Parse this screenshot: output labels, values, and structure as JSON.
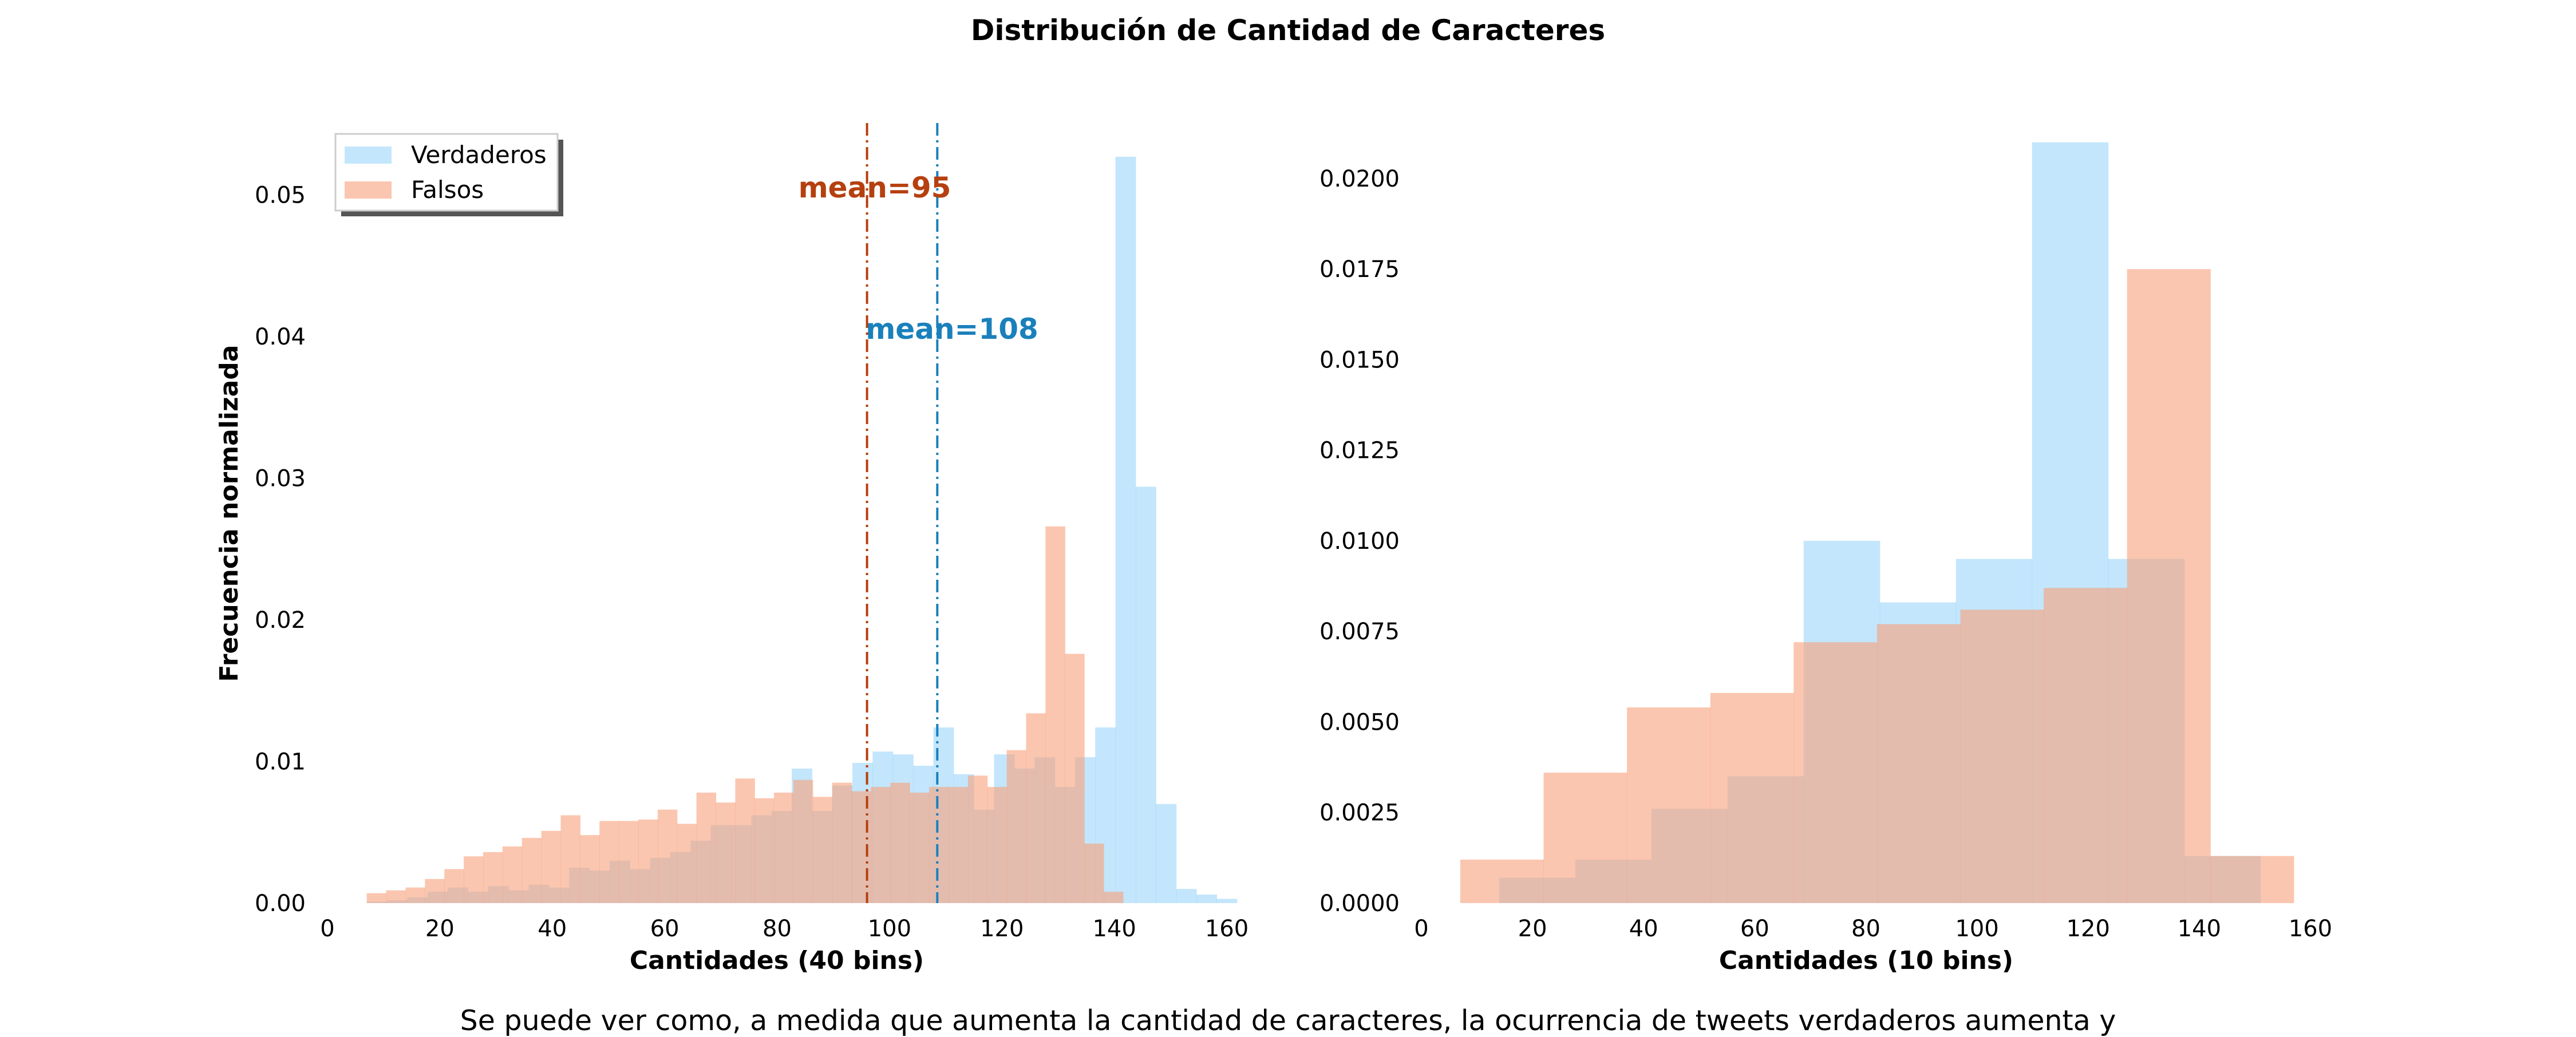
{
  "figure": {
    "title": "Distribución de Cantidad de Caracteres",
    "caption": "Se puede ver como, a medida que aumenta la cantidad de caracteres, la ocurrencia de tweets verdaderos aumenta y",
    "colors": {
      "verdaderos": "#87cefa",
      "falsos": "#f9a07a",
      "mean_falsos": "#b5400f",
      "mean_verdaderos": "#1a80bb"
    }
  },
  "chart_data": [
    {
      "type": "bar",
      "title": "",
      "xlabel": "Cantidades (40 bins)",
      "ylabel": "Frecuencia normalizada",
      "xlim": [
        0,
        160
      ],
      "ylim": [
        0,
        0.055
      ],
      "xticks": [
        "0",
        "20",
        "40",
        "60",
        "80",
        "100",
        "120",
        "140",
        "160"
      ],
      "yticks": [
        "0.00",
        "0.01",
        "0.02",
        "0.03",
        "0.04",
        "0.05"
      ],
      "grid": false,
      "legend": {
        "position": "top-left",
        "entries": [
          "Verdaderos",
          "Falsos"
        ]
      },
      "annotations": [
        {
          "label": "mean=95",
          "x": 96,
          "series": "Falsos"
        },
        {
          "label": "mean=108",
          "x": 108.5,
          "series": "Verdaderos"
        }
      ],
      "series": [
        {
          "name": "Verdaderos",
          "bin_start": 7,
          "bin_width": 3.6,
          "values": [
            0.0001,
            0.0002,
            0.0004,
            0.0008,
            0.0011,
            0.0008,
            0.0012,
            0.0009,
            0.0013,
            0.0011,
            0.0025,
            0.0023,
            0.003,
            0.0024,
            0.0032,
            0.0036,
            0.0044,
            0.0055,
            0.0055,
            0.0062,
            0.0065,
            0.0095,
            0.0065,
            0.0083,
            0.0099,
            0.0107,
            0.0105,
            0.0097,
            0.0124,
            0.0091,
            0.0066,
            0.0105,
            0.0095,
            0.0103,
            0.0082,
            0.0103,
            0.0124,
            0.0527,
            0.0294,
            0.007,
            0.001,
            0.0006,
            0.0003
          ]
        },
        {
          "name": "Falsos",
          "bin_start": 7,
          "bin_width": 3.45,
          "values": [
            0.0007,
            0.0009,
            0.0011,
            0.0017,
            0.0024,
            0.0033,
            0.0036,
            0.004,
            0.0046,
            0.0051,
            0.0062,
            0.0048,
            0.0058,
            0.0058,
            0.0059,
            0.0066,
            0.0056,
            0.0078,
            0.0071,
            0.0088,
            0.0074,
            0.0078,
            0.0087,
            0.0075,
            0.0085,
            0.0079,
            0.0082,
            0.0085,
            0.0078,
            0.0082,
            0.0082,
            0.009,
            0.0082,
            0.0108,
            0.0134,
            0.0266,
            0.0176,
            0.0042,
            0.0008
          ]
        }
      ]
    },
    {
      "type": "bar",
      "title": "",
      "xlabel": "Cantidades (10 bins)",
      "ylabel": "",
      "xlim": [
        0,
        160
      ],
      "ylim": [
        0,
        0.0215
      ],
      "xticks": [
        "0",
        "20",
        "40",
        "60",
        "80",
        "100",
        "120",
        "140",
        "160"
      ],
      "yticks": [
        "0.0000",
        "0.0025",
        "0.0050",
        "0.0075",
        "0.0100",
        "0.0125",
        "0.0150",
        "0.0175",
        "0.0200"
      ],
      "grid": false,
      "series": [
        {
          "name": "Verdaderos",
          "bin_start": 14,
          "bin_width": 13.7,
          "values": [
            0.0007,
            0.0012,
            0.0026,
            0.0035,
            0.01,
            0.0083,
            0.0095,
            0.021,
            0.0095,
            0.0013
          ]
        },
        {
          "name": "Falsos",
          "bin_start": 7,
          "bin_width": 15,
          "values": [
            0.0012,
            0.0036,
            0.0054,
            0.0058,
            0.0072,
            0.0077,
            0.0081,
            0.0087,
            0.0175,
            0.0013
          ]
        }
      ]
    }
  ]
}
